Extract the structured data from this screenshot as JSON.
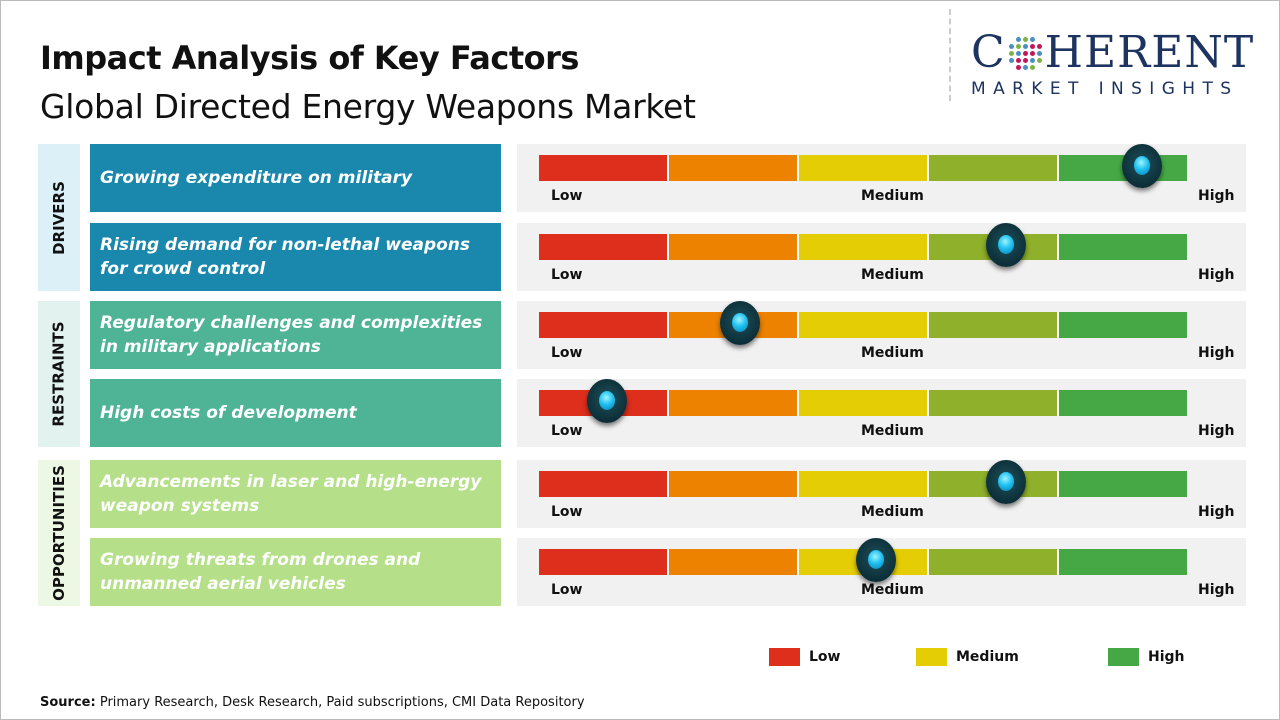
{
  "header": {
    "title": "Impact Analysis of Key Factors",
    "subtitle": "Global Directed Energy Weapons Market"
  },
  "logo": {
    "main_left": "C",
    "main_right": "HERENT",
    "sub": "MARKET INSIGHTS"
  },
  "colors": {
    "drivers": "#1a87ad",
    "restraints": "#4fb496",
    "opportunities": "#b5e089",
    "drivers_bg": "#dcf0f8",
    "restraints_bg": "#e1f2ef",
    "opportunities_bg": "#ecf8e3",
    "scale": [
      "#de2e1c",
      "#ec8200",
      "#e4cd05",
      "#8fb02a",
      "#45a845"
    ]
  },
  "chart_data": {
    "type": "gauge",
    "scale_labels": [
      "Low",
      "Medium",
      "High"
    ],
    "categories": [
      {
        "name": "DRIVERS",
        "factors": [
          {
            "label": "Growing expenditure on military",
            "impact": 0.93
          },
          {
            "label": "Rising demand for non-lethal weapons for crowd control",
            "impact": 0.72
          }
        ]
      },
      {
        "name": "RESTRAINTS",
        "factors": [
          {
            "label": "Regulatory challenges and complexities in military applications",
            "impact": 0.31
          },
          {
            "label": "High costs of development",
            "impact": 0.105
          }
        ]
      },
      {
        "name": "OPPORTUNITIES",
        "factors": [
          {
            "label": "Advancements in laser and high-energy weapon systems",
            "impact": 0.72
          },
          {
            "label": "Growing threats from drones and unmanned aerial vehicles",
            "impact": 0.52
          }
        ]
      }
    ]
  },
  "legend": [
    {
      "label": "Low",
      "color": "#de2e1c"
    },
    {
      "label": "Medium",
      "color": "#e4cd05"
    },
    {
      "label": "High",
      "color": "#45a845"
    }
  ],
  "source": {
    "label": "Source:",
    "text": "Primary Research, Desk Research, Paid subscriptions, CMI Data Repository"
  }
}
